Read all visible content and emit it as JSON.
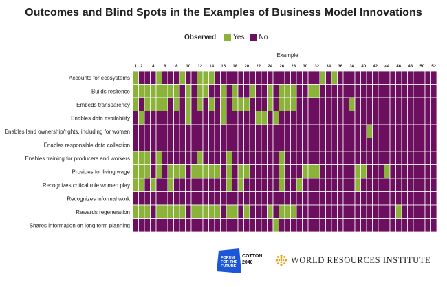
{
  "title": "Outcomes and Blind Spots in the Examples of Business Model Innovations",
  "legend": {
    "title": "Observed",
    "yes": "Yes",
    "no": "No"
  },
  "colors": {
    "yes": "#8bb33a",
    "no": "#6b0f5e"
  },
  "logos": {
    "forum": "FORUM FOR THE FUTURE",
    "cotton_line1": "COTTON",
    "cotton_line2": "2040",
    "wri": "WORLD RESOURCES INSTITUTE"
  },
  "chart_data": {
    "type": "heatmap",
    "xlabel": "Example",
    "x_tick_labels": [
      "1",
      "2",
      "4",
      "6",
      "8",
      "10",
      "12",
      "14",
      "16",
      "18",
      "20",
      "22",
      "24",
      "26",
      "28",
      "30",
      "32",
      "34",
      "36",
      "38",
      "40",
      "42",
      "44",
      "46",
      "48",
      "50",
      "52"
    ],
    "x": [
      1,
      2,
      3,
      4,
      5,
      6,
      7,
      8,
      9,
      10,
      11,
      12,
      13,
      14,
      15,
      16,
      17,
      18,
      19,
      20,
      21,
      22,
      23,
      24,
      25,
      26,
      27,
      28,
      29,
      30,
      31,
      32,
      33,
      34,
      35,
      36,
      37,
      38,
      39,
      40,
      41,
      42,
      43,
      44,
      45,
      46,
      47,
      48,
      49,
      50,
      51,
      52
    ],
    "categories": [
      "Accounts for ecosystems",
      "Builds reslience",
      "Embeds transparency",
      "Enables data availability",
      "Enables land ownership/rights, including for women",
      "Enables responsible data collection",
      "Enables training for producers and workers",
      "Provides for living wage",
      "Recognizes critical role women play",
      "Recognizes informal work",
      "Rewards regeneration",
      "Shares information on long term planning"
    ],
    "observed_yes": [
      [
        1,
        5,
        9,
        12,
        13,
        14,
        33,
        35
      ],
      [
        1,
        2,
        3,
        4,
        5,
        6,
        7,
        8,
        10,
        12,
        13,
        16,
        18,
        21,
        24,
        26,
        27,
        28,
        31,
        32
      ],
      [
        1,
        3,
        4,
        5,
        6,
        8,
        10,
        12,
        14,
        16,
        18,
        19,
        20,
        24,
        26,
        27,
        28,
        38
      ],
      [
        2,
        10,
        16,
        22,
        23,
        25
      ],
      [
        41
      ],
      [],
      [
        1,
        2,
        3,
        5,
        12,
        17,
        26
      ],
      [
        1,
        2,
        3,
        5,
        7,
        8,
        9,
        11,
        12,
        13,
        14,
        15,
        17,
        19,
        20,
        26,
        30,
        31,
        32,
        39,
        40,
        44
      ],
      [
        1,
        2,
        4,
        7,
        17,
        19,
        26,
        29,
        39
      ],
      [],
      [
        1,
        2,
        3,
        5,
        6,
        7,
        8,
        9,
        11,
        12,
        13,
        14,
        15,
        17,
        18,
        20,
        24,
        26,
        27,
        28,
        46
      ],
      [
        25
      ]
    ]
  }
}
